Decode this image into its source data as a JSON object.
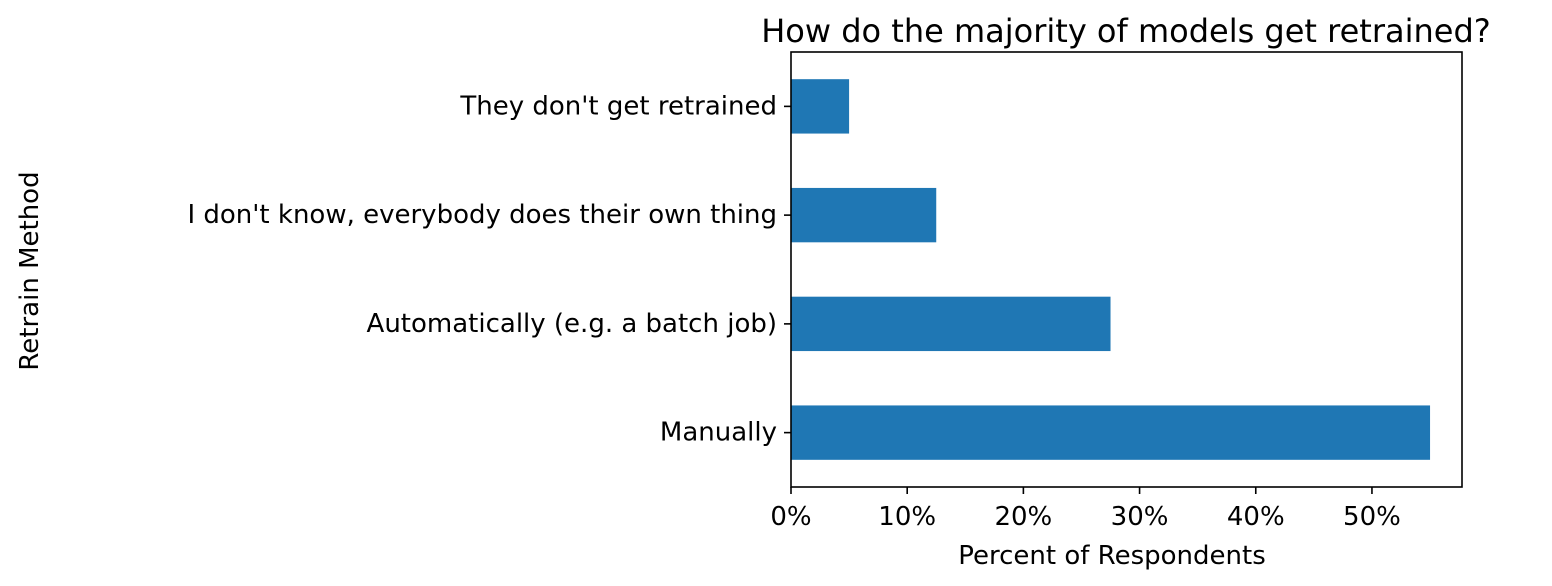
{
  "chart_data": {
    "type": "bar",
    "orientation": "horizontal",
    "title": "How do the majority of models get retrained?",
    "xlabel": "Percent of Respondents",
    "ylabel": "Retrain Method",
    "categories": [
      "Manually",
      "Automatically (e.g. a batch job)",
      "I don't know, everybody does their own thing",
      "They don't get retrained"
    ],
    "values": [
      55,
      27.5,
      12.5,
      5
    ],
    "value_unit": "%",
    "xlim": [
      0,
      57.75
    ],
    "xticks": [
      0,
      10,
      20,
      30,
      40,
      50
    ],
    "xtick_labels": [
      "0%",
      "10%",
      "20%",
      "30%",
      "40%",
      "50%"
    ],
    "grid": false,
    "legend": "none",
    "bar_color": "#1f77b4"
  }
}
